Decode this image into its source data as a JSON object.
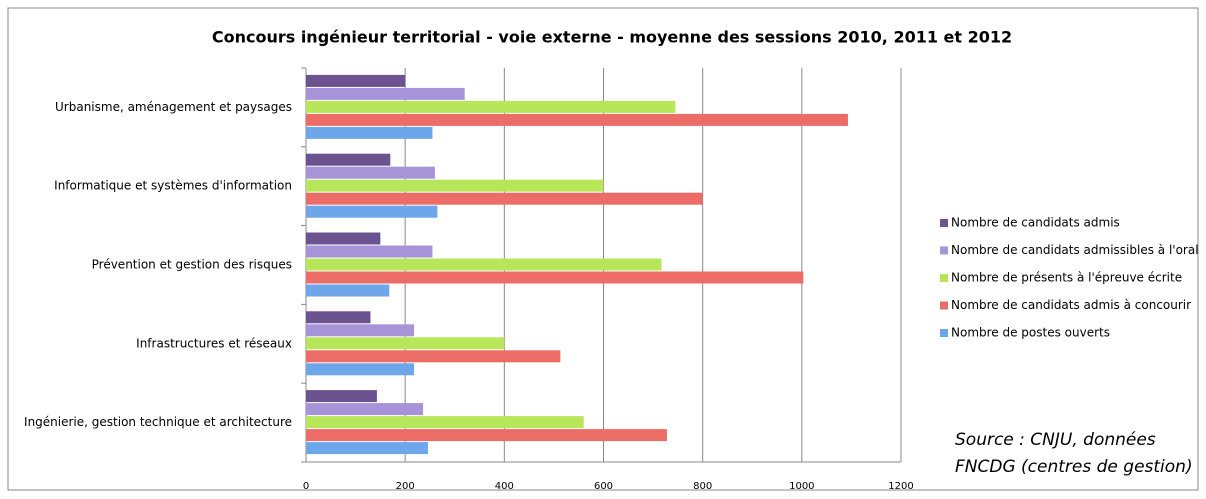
{
  "chart_data": {
    "type": "hbar",
    "title": "Concours ingénieur territorial - voie externe - moyenne des sessions 2010, 2011 et 2012",
    "categories": [
      "Urbanisme, aménagement et paysages",
      "Informatique et systèmes d'information",
      "Prévention et gestion des risques",
      "Infrastructures et réseaux",
      "Ingénierie, gestion technique et architecture"
    ],
    "series": [
      {
        "name": "Nombre de candidats admis",
        "color": "#6b5390",
        "values": [
          200,
          170,
          150,
          130,
          143
        ]
      },
      {
        "name": "Nombre de candidats admissibles à l'oral",
        "color": "#a793d8",
        "values": [
          320,
          260,
          255,
          218,
          236
        ]
      },
      {
        "name": "Nombre de présents à l'épreuve écrite",
        "color": "#b8e65a",
        "values": [
          745,
          600,
          717,
          400,
          560
        ]
      },
      {
        "name": "Nombre de candidats admis à concourir",
        "color": "#ec6d68",
        "values": [
          1093,
          800,
          1003,
          513,
          728
        ]
      },
      {
        "name": "Nombre de postes ouverts",
        "color": "#6ea6ea",
        "values": [
          255,
          265,
          168,
          218,
          246
        ]
      }
    ],
    "xlim": [
      0,
      1200
    ],
    "xticks": [
      0,
      200,
      400,
      600,
      800,
      1000,
      1200
    ],
    "grid": true,
    "legend": "right",
    "annotations": [
      "Source : CNJU, données",
      "FNCDG (centres de gestion)"
    ]
  }
}
